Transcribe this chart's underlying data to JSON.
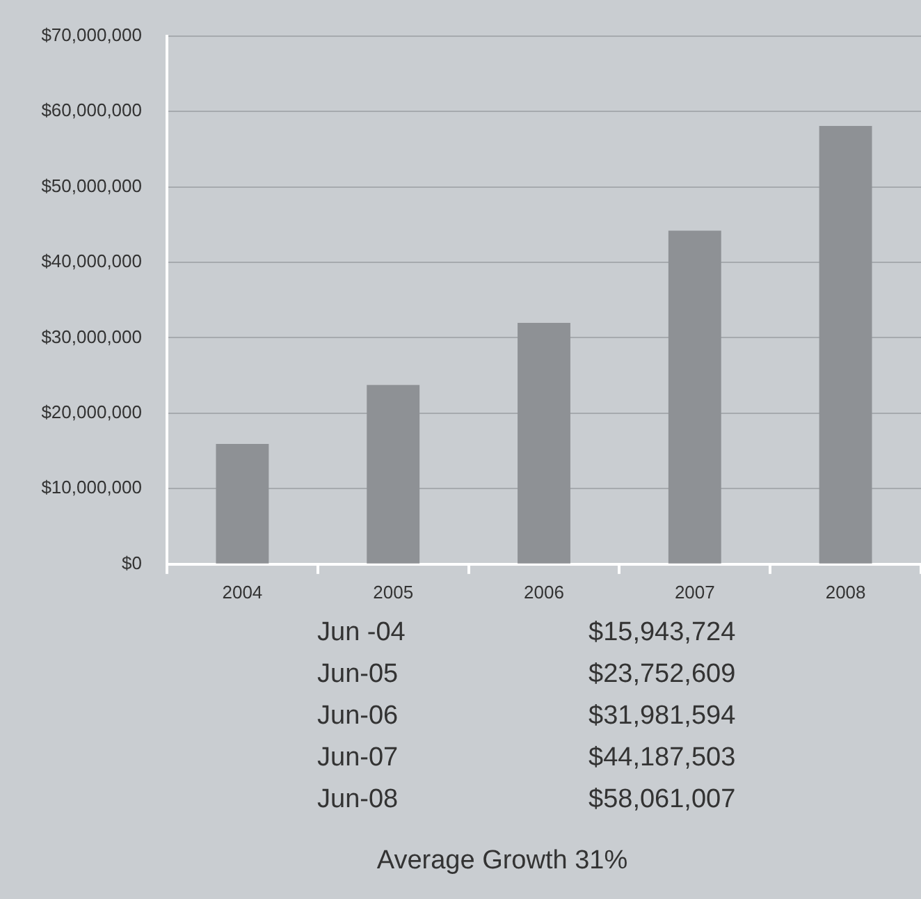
{
  "chart_data": {
    "type": "bar",
    "categories": [
      "2004",
      "2005",
      "2006",
      "2007",
      "2008"
    ],
    "values": [
      15943724,
      23752609,
      31981594,
      44187503,
      58061007
    ],
    "color": "#8e9195",
    "ylim": [
      0,
      70000000
    ],
    "yticks": [
      {
        "value": 0,
        "label": "$0"
      },
      {
        "value": 10000000,
        "label": "$10,000,000"
      },
      {
        "value": 20000000,
        "label": "$20,000,000"
      },
      {
        "value": 30000000,
        "label": "$30,000,000"
      },
      {
        "value": 40000000,
        "label": "$40,000,000"
      },
      {
        "value": 50000000,
        "label": "$50,000,000"
      },
      {
        "value": 60000000,
        "label": "$60,000,000"
      },
      {
        "value": 70000000,
        "label": "$70,000,000"
      }
    ],
    "grid": "y",
    "legend": false,
    "annotations": [
      "Jun -04",
      "$15,943,724",
      "Jun-05",
      "$23,752,609",
      "Jun-06",
      "$31,981,594",
      "Jun-07",
      "$44,187,503",
      "Jun-08",
      "$58,061,007",
      "Average Growth 31%"
    ]
  }
}
